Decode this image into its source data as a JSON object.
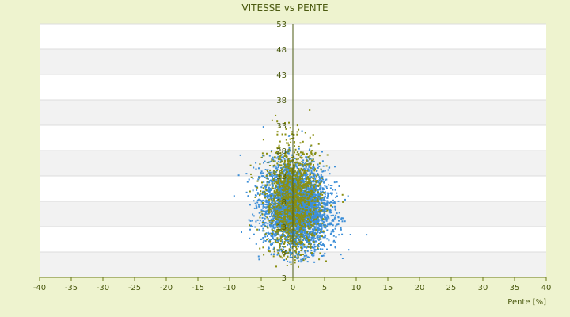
{
  "chart_data": {
    "type": "scatter",
    "title": "VITESSE vs PENTE",
    "xlabel": "Pente [%]",
    "ylabel": "",
    "xlim": [
      -40,
      40
    ],
    "ylim": [
      3,
      53
    ],
    "x_ticks": [
      -40,
      -35,
      -30,
      -25,
      -20,
      -15,
      -10,
      -5,
      0,
      5,
      10,
      15,
      20,
      25,
      30,
      35,
      40
    ],
    "y_ticks": [
      3,
      8,
      13,
      18,
      23,
      28,
      33,
      38,
      43,
      48,
      53
    ],
    "grid": "horizontal alternating bands",
    "legend": "none",
    "series": [
      {
        "color": "#3d8fd8",
        "distribution": {
          "center": {
            "x": 0.5,
            "y": 17
          },
          "spread": {
            "x": 2.6,
            "y": 4.2
          },
          "x_range": [
            -11,
            13
          ],
          "y_range": [
            6,
            33
          ],
          "approx_points": 4000
        }
      },
      {
        "color": "#8a8f12",
        "distribution": {
          "center": {
            "x": 0.0,
            "y": 18
          },
          "spread": {
            "x": 2.2,
            "y": 5.5
          },
          "x_range": [
            -9,
            9
          ],
          "y_range": [
            5,
            41
          ],
          "approx_points": 1400
        }
      }
    ]
  }
}
